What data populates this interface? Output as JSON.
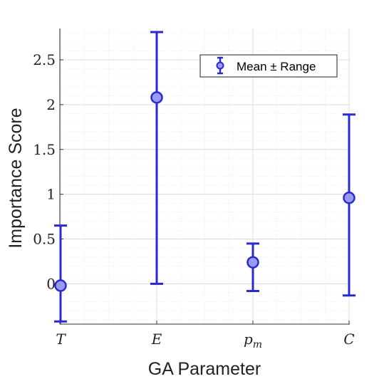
{
  "chart_data": {
    "type": "scatter",
    "categories": [
      "T",
      "E",
      "p_m",
      "C"
    ],
    "category_labels": [
      {
        "main": "T",
        "sub": ""
      },
      {
        "main": "E",
        "sub": ""
      },
      {
        "main": "p",
        "sub": "m"
      },
      {
        "main": "C",
        "sub": ""
      }
    ],
    "series": [
      {
        "name": "Mean ± Range",
        "mean": [
          -0.02,
          2.08,
          0.24,
          0.96
        ],
        "low": [
          -0.42,
          0.0,
          -0.08,
          -0.13
        ],
        "high": [
          0.65,
          2.81,
          0.45,
          1.89
        ],
        "color": "#2a2ad0",
        "marker_fill": "#9a9af0"
      }
    ],
    "xlabel": "GA Parameter",
    "ylabel": "Importance Score",
    "ylim": [
      -0.45,
      2.85
    ],
    "yticks": [
      0,
      0.5,
      1,
      1.5,
      2,
      2.5
    ],
    "ytick_labels": [
      "0",
      "0.5",
      "1",
      "1.5",
      "2",
      "2.5"
    ],
    "grid": true,
    "minor_grid": true,
    "legend_position": "top-right"
  }
}
